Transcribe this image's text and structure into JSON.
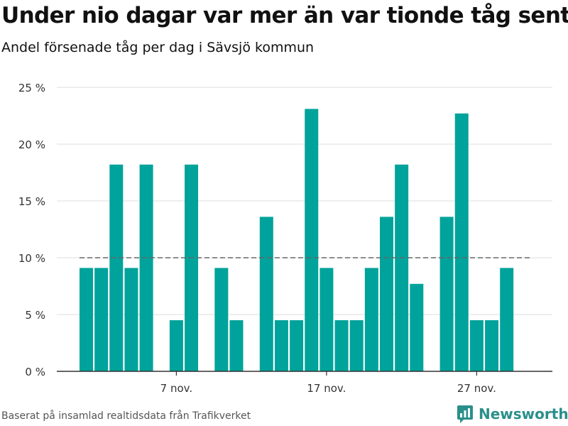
{
  "title": "Under nio dagar var mer än var tionde tåg sent",
  "subtitle": "Andel försenade tåg per dag i Sävsjö kommun",
  "footer": {
    "source": "Baserat på insamlad realtidsdata från Trafikverket",
    "brand": "Newsworthy"
  },
  "colors": {
    "bar": "#00a39b",
    "reference_line": "#666666",
    "grid": "#dddddd",
    "brand": "#2a8f8a"
  },
  "logo_icon": "bar-chart-icon",
  "chart_data": {
    "type": "bar",
    "unit": "%",
    "x_start_label": "1 nov.",
    "categories": [
      "1 nov.",
      "2 nov.",
      "3 nov.",
      "4 nov.",
      "5 nov.",
      "6 nov.",
      "7 nov.",
      "8 nov.",
      "9 nov.",
      "10 nov.",
      "11 nov.",
      "12 nov.",
      "13 nov.",
      "14 nov.",
      "15 nov.",
      "16 nov.",
      "17 nov.",
      "18 nov.",
      "19 nov.",
      "20 nov.",
      "21 nov.",
      "22 nov.",
      "23 nov.",
      "24 nov.",
      "25 nov.",
      "26 nov.",
      "27 nov.",
      "28 nov.",
      "29 nov.",
      "30 nov."
    ],
    "values": [
      9.1,
      9.1,
      18.2,
      9.1,
      18.2,
      0,
      4.5,
      18.2,
      0,
      9.1,
      4.5,
      0,
      13.6,
      4.5,
      4.5,
      23.1,
      9.1,
      4.5,
      4.5,
      9.1,
      13.6,
      18.2,
      7.7,
      0,
      13.6,
      22.7,
      4.5,
      4.5,
      9.1,
      0
    ],
    "xtick_labels": [
      "7 nov.",
      "17 nov.",
      "27 nov."
    ],
    "xtick_categories": [
      "7 nov.",
      "17 nov.",
      "27 nov."
    ],
    "ytick_values": [
      0,
      5,
      10,
      15,
      20,
      25
    ],
    "ytick_labels": [
      "0 %",
      "5 %",
      "10 %",
      "15 %",
      "20 %",
      "25 %"
    ],
    "ylim": [
      0,
      25
    ],
    "reference_line": 10,
    "grid": true,
    "legend": "none",
    "xlabel": "",
    "ylabel": ""
  }
}
